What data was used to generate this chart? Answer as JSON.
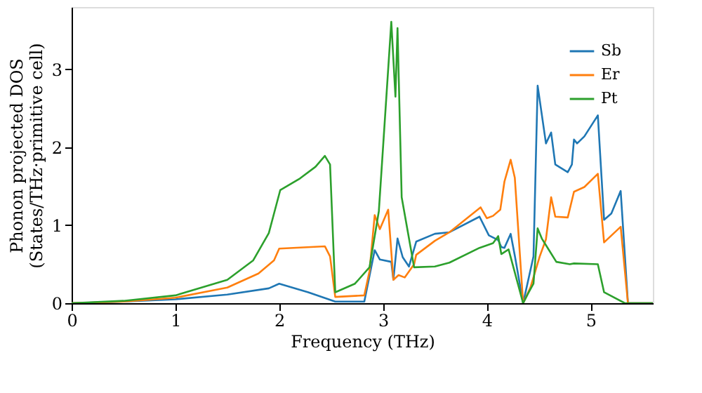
{
  "chart_data": {
    "type": "line",
    "xlabel": "Frequency (THz)",
    "ylabel": "Phonon projected DOS\n(States/THz·primitive cell)",
    "xlim": [
      0,
      5.6
    ],
    "ylim": [
      0,
      3.8
    ],
    "xticks": [
      0,
      1,
      2,
      3,
      4,
      5
    ],
    "yticks": [
      0,
      1,
      2,
      3
    ],
    "grid": false,
    "legend": "top right",
    "line_style": "solid",
    "marker": "none",
    "series": [
      {
        "name": "Sb",
        "color": "#1f77b4",
        "x": [
          0,
          0.5,
          1,
          1.5,
          1.9,
          2.0,
          2.28,
          2.54,
          2.82,
          2.87,
          2.92,
          2.97,
          3.08,
          3.1,
          3.14,
          3.19,
          3.25,
          3.32,
          3.5,
          3.64,
          3.93,
          4.02,
          4.11,
          4.14,
          4.17,
          4.23,
          4.27,
          4.35,
          4.45,
          4.49,
          4.57,
          4.62,
          4.66,
          4.78,
          4.82,
          4.84,
          4.87,
          4.94,
          5.07,
          5.13,
          5.2,
          5.29,
          5.36,
          5.6
        ],
        "values": [
          0,
          0.02,
          0.05,
          0.11,
          0.19,
          0.25,
          0.14,
          0.02,
          0.02,
          0.35,
          0.68,
          0.56,
          0.53,
          0.3,
          0.83,
          0.59,
          0.47,
          0.79,
          0.89,
          0.91,
          1.11,
          0.87,
          0.81,
          0.72,
          0.71,
          0.89,
          0.61,
          0,
          0.6,
          2.79,
          2.05,
          2.19,
          1.78,
          1.68,
          1.78,
          2.1,
          2.05,
          2.14,
          2.41,
          1.07,
          1.15,
          1.44,
          0,
          0
        ]
      },
      {
        "name": "Er",
        "color": "#ff7f0e",
        "x": [
          0,
          0.5,
          1,
          1.5,
          1.8,
          1.95,
          2.0,
          2.44,
          2.49,
          2.54,
          2.82,
          2.87,
          2.92,
          2.97,
          3.05,
          3.1,
          3.15,
          3.21,
          3.3,
          3.32,
          3.5,
          3.64,
          3.94,
          4.0,
          4.06,
          4.13,
          4.17,
          4.23,
          4.27,
          4.35,
          4.42,
          4.51,
          4.57,
          4.62,
          4.66,
          4.78,
          4.84,
          4.94,
          5.07,
          5.13,
          5.29,
          5.36,
          5.6
        ],
        "values": [
          0,
          0.02,
          0.07,
          0.2,
          0.38,
          0.55,
          0.7,
          0.73,
          0.6,
          0.08,
          0.1,
          0.41,
          1.13,
          0.95,
          1.2,
          0.3,
          0.36,
          0.33,
          0.5,
          0.62,
          0.8,
          0.91,
          1.23,
          1.09,
          1.12,
          1.2,
          1.56,
          1.84,
          1.61,
          0,
          0.2,
          0.6,
          0.82,
          1.36,
          1.11,
          1.1,
          1.43,
          1.49,
          1.66,
          0.78,
          0.98,
          0,
          0
        ]
      },
      {
        "name": "Pt",
        "color": "#2ca02c",
        "x": [
          0,
          0.5,
          1,
          1.5,
          1.75,
          1.9,
          1.96,
          2.01,
          2.2,
          2.35,
          2.44,
          2.49,
          2.54,
          2.73,
          2.87,
          2.96,
          3.08,
          3.12,
          3.14,
          3.18,
          3.3,
          3.5,
          3.64,
          3.93,
          4.06,
          4.11,
          4.14,
          4.21,
          4.35,
          4.4,
          4.45,
          4.49,
          4.53,
          4.6,
          4.67,
          4.8,
          4.84,
          5.07,
          5.13,
          5.33,
          5.6
        ],
        "values": [
          0,
          0.03,
          0.1,
          0.3,
          0.55,
          0.9,
          1.2,
          1.45,
          1.6,
          1.75,
          1.89,
          1.78,
          0.14,
          0.25,
          0.46,
          1.18,
          3.61,
          2.65,
          3.53,
          1.36,
          0.46,
          0.47,
          0.52,
          0.71,
          0.77,
          0.86,
          0.63,
          0.69,
          0,
          0.13,
          0.25,
          0.96,
          0.83,
          0.68,
          0.53,
          0.5,
          0.51,
          0.5,
          0.14,
          0,
          0
        ]
      }
    ]
  }
}
